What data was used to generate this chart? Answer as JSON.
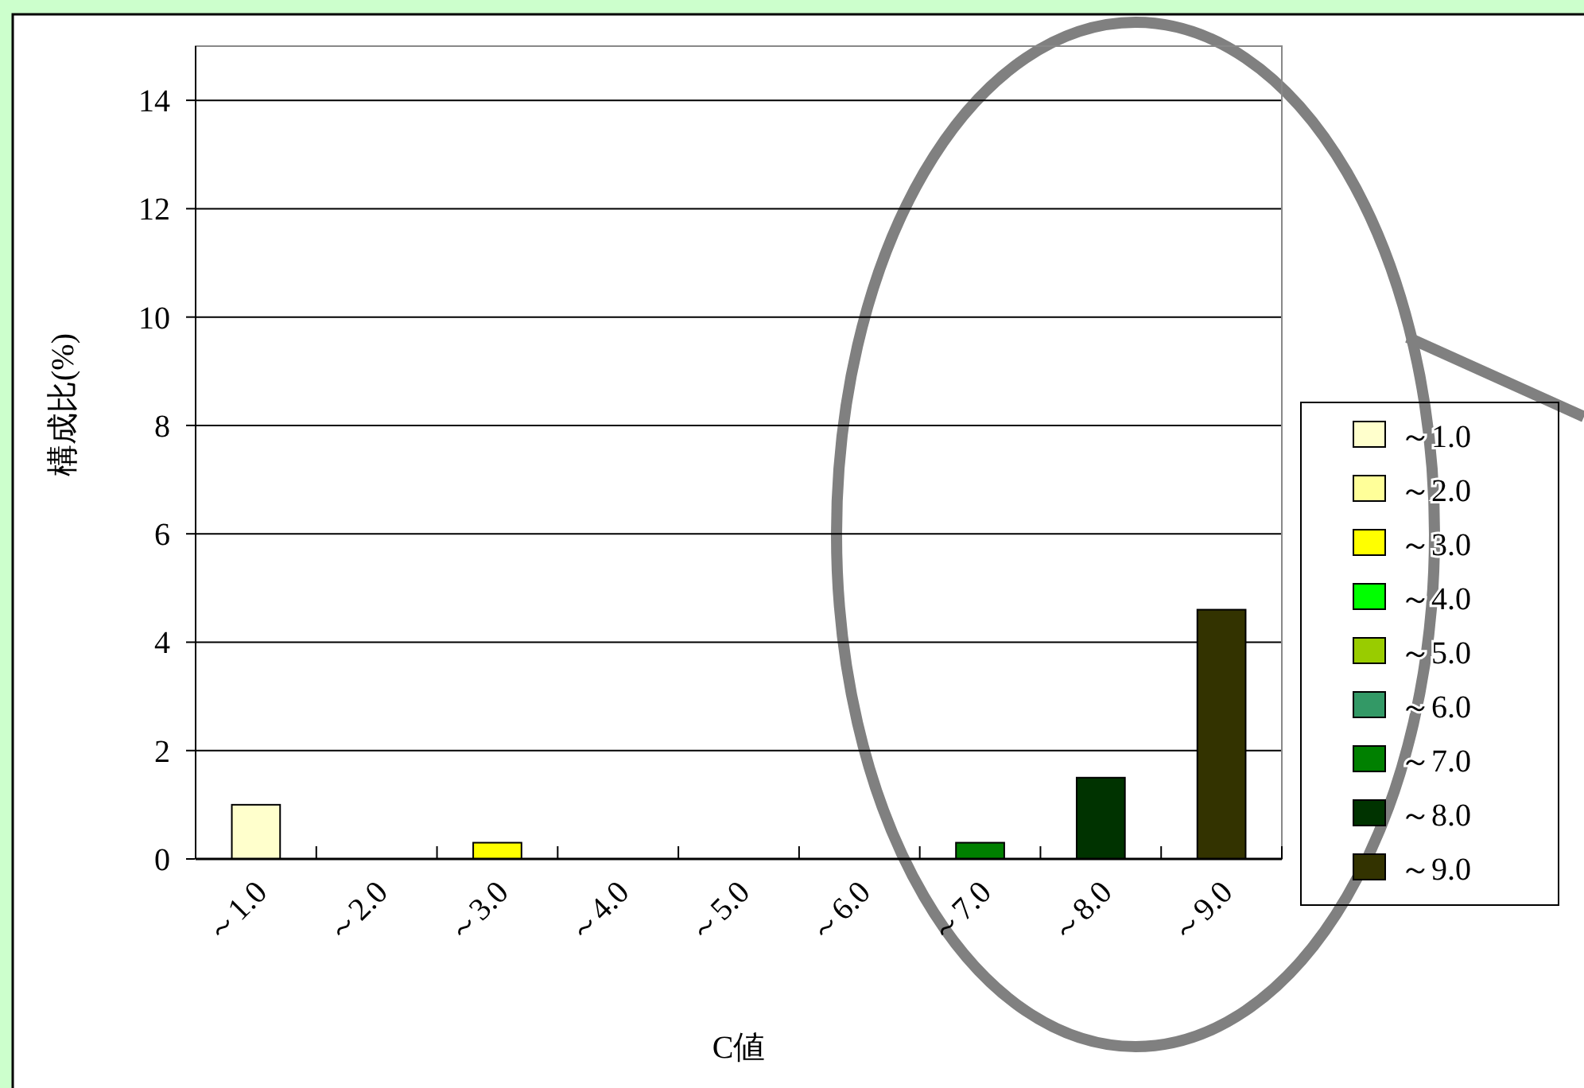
{
  "chart_data": {
    "type": "bar",
    "xlabel": "C値",
    "ylabel": "構成比(%)",
    "categories": [
      "～1.0",
      "～2.0",
      "～3.0",
      "～4.0",
      "～5.0",
      "～6.0",
      "～7.0",
      "～8.0",
      "～9.0"
    ],
    "series": [
      {
        "name": "～1.0",
        "color": "#ffffcc",
        "values": [
          1.0,
          null,
          null,
          null,
          null,
          null,
          null,
          null,
          null
        ]
      },
      {
        "name": "～2.0",
        "color": "#ffff99",
        "values": [
          null,
          0,
          null,
          null,
          null,
          null,
          null,
          null,
          null
        ]
      },
      {
        "name": "～3.0",
        "color": "#ffff00",
        "values": [
          null,
          null,
          0.3,
          null,
          null,
          null,
          null,
          null,
          null
        ]
      },
      {
        "name": "～4.0",
        "color": "#00ff00",
        "values": [
          null,
          null,
          null,
          0,
          null,
          null,
          null,
          null,
          null
        ]
      },
      {
        "name": "～5.0",
        "color": "#99cc00",
        "values": [
          null,
          null,
          null,
          null,
          0,
          null,
          null,
          null,
          null
        ]
      },
      {
        "name": "～6.0",
        "color": "#339966",
        "values": [
          null,
          null,
          null,
          null,
          null,
          0,
          null,
          null,
          null
        ]
      },
      {
        "name": "～7.0",
        "color": "#008000",
        "values": [
          null,
          null,
          null,
          null,
          null,
          null,
          0.3,
          null,
          null
        ]
      },
      {
        "name": "～8.0",
        "color": "#003300",
        "values": [
          null,
          null,
          null,
          null,
          null,
          null,
          null,
          1.5,
          null
        ]
      },
      {
        "name": "～9.0",
        "color": "#333300",
        "values": [
          null,
          null,
          null,
          null,
          null,
          null,
          null,
          null,
          4.6
        ]
      }
    ],
    "ylim": [
      0,
      15
    ],
    "yticks": [
      0,
      2,
      4,
      6,
      8,
      10,
      12,
      14
    ],
    "grid": "y",
    "legend": "right"
  }
}
